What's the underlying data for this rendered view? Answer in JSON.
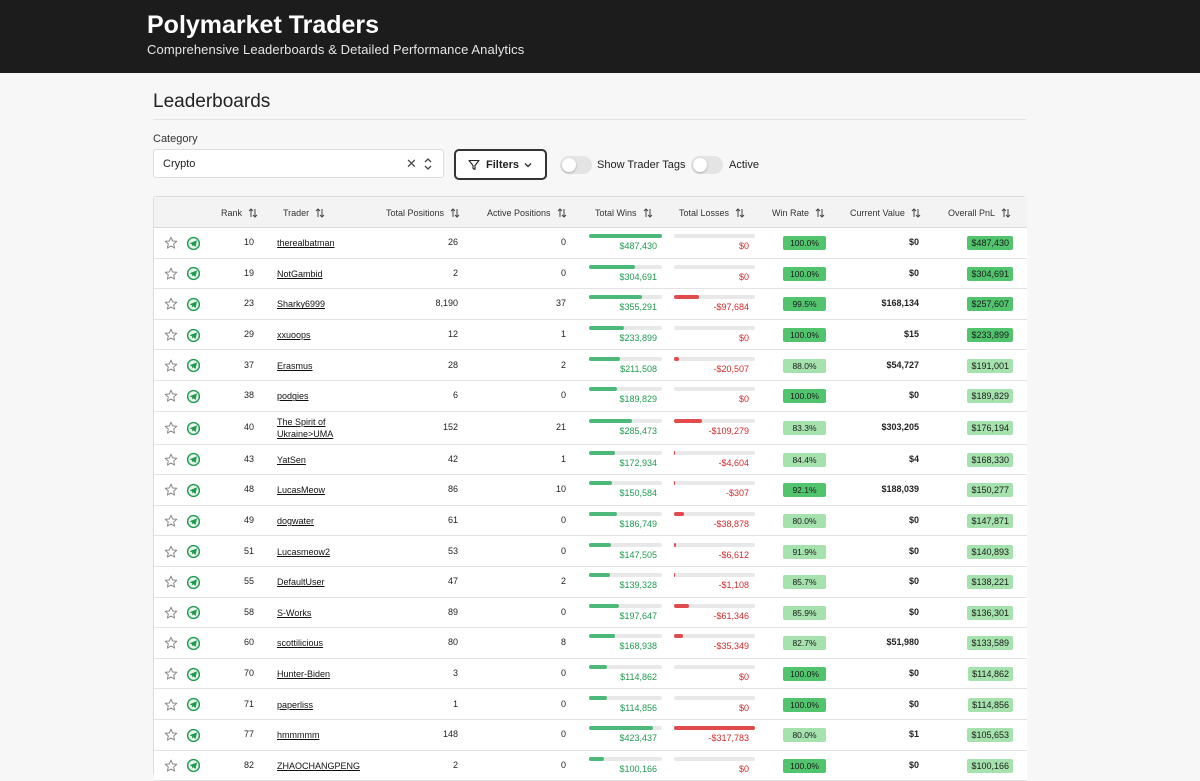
{
  "header": {
    "title": "Polymarket Traders",
    "subtitle": "Comprehensive Leaderboards & Detailed Performance Analytics"
  },
  "page": {
    "heading": "Leaderboards"
  },
  "category": {
    "label": "Category",
    "value": "Crypto",
    "clear_glyph": "✕"
  },
  "filters": {
    "label": "Filters"
  },
  "toggles": [
    {
      "label": "Show Trader Tags",
      "on": false
    },
    {
      "label": "Active",
      "on": false
    }
  ],
  "colors": {
    "win_green": "#1f9a50",
    "loss_red": "#d12b2b",
    "bar_green": "#4cb97a",
    "bar_red": "#e14b4b",
    "rate_high": "#52c46e",
    "rate_mid": "#a6e2ae",
    "pnl_high": "#52c46e",
    "pnl_mid": "#a6e2ae",
    "telegram": "#1f9a50",
    "header_bg": "#1c1c1c"
  },
  "table": {
    "columns": [
      "Rank",
      "Trader",
      "Total Positions",
      "Active Positions",
      "Total Wins",
      "Total Losses",
      "Win Rate",
      "Current Value",
      "Overall PnL"
    ],
    "rows": [
      {
        "rank": "10",
        "trader": "therealbatman",
        "total_positions": "26",
        "active_positions": "0",
        "total_wins": "$487,430",
        "total_losses": "$0",
        "win_rate": "100.0%",
        "current_value": "$0",
        "overall_pnl": "$487,430",
        "wins_frac": 1.0,
        "loss_frac": 0.0
      },
      {
        "rank": "19",
        "trader": "NotGambid",
        "total_positions": "2",
        "active_positions": "0",
        "total_wins": "$304,691",
        "total_losses": "$0",
        "win_rate": "100.0%",
        "current_value": "$0",
        "overall_pnl": "$304,691",
        "wins_frac": 0.63,
        "loss_frac": 0.0
      },
      {
        "rank": "23",
        "trader": "Sharky6999",
        "total_positions": "8,190",
        "active_positions": "37",
        "total_wins": "$355,291",
        "total_losses": "-$97,684",
        "win_rate": "99.5%",
        "current_value": "$168,134",
        "overall_pnl": "$257,607",
        "wins_frac": 0.73,
        "loss_frac": 0.31
      },
      {
        "rank": "29",
        "trader": "xxuoops",
        "total_positions": "12",
        "active_positions": "1",
        "total_wins": "$233,899",
        "total_losses": "$0",
        "win_rate": "100.0%",
        "current_value": "$15",
        "overall_pnl": "$233,899",
        "wins_frac": 0.48,
        "loss_frac": 0.0
      },
      {
        "rank": "37",
        "trader": "Erasmus",
        "total_positions": "28",
        "active_positions": "2",
        "total_wins": "$211,508",
        "total_losses": "-$20,507",
        "win_rate": "88.0%",
        "current_value": "$54,727",
        "overall_pnl": "$191,001",
        "wins_frac": 0.43,
        "loss_frac": 0.065
      },
      {
        "rank": "38",
        "trader": "podgies",
        "total_positions": "6",
        "active_positions": "0",
        "total_wins": "$189,829",
        "total_losses": "$0",
        "win_rate": "100.0%",
        "current_value": "$0",
        "overall_pnl": "$189,829",
        "wins_frac": 0.39,
        "loss_frac": 0.0
      },
      {
        "rank": "40",
        "trader": "The Spirit of Ukraine>UMA",
        "total_positions": "152",
        "active_positions": "21",
        "total_wins": "$285,473",
        "total_losses": "-$109,279",
        "win_rate": "83.3%",
        "current_value": "$303,205",
        "overall_pnl": "$176,194",
        "wins_frac": 0.59,
        "loss_frac": 0.34
      },
      {
        "rank": "43",
        "trader": "YatSen",
        "total_positions": "42",
        "active_positions": "1",
        "total_wins": "$172,934",
        "total_losses": "-$4,604",
        "win_rate": "84.4%",
        "current_value": "$4",
        "overall_pnl": "$168,330",
        "wins_frac": 0.35,
        "loss_frac": 0.015
      },
      {
        "rank": "48",
        "trader": "LucasMeow",
        "total_positions": "86",
        "active_positions": "10",
        "total_wins": "$150,584",
        "total_losses": "-$307",
        "win_rate": "92.1%",
        "current_value": "$188,039",
        "overall_pnl": "$150,277",
        "wins_frac": 0.31,
        "loss_frac": 0.005
      },
      {
        "rank": "49",
        "trader": "dogwater",
        "total_positions": "61",
        "active_positions": "0",
        "total_wins": "$186,749",
        "total_losses": "-$38,878",
        "win_rate": "80.0%",
        "current_value": "$0",
        "overall_pnl": "$147,871",
        "wins_frac": 0.38,
        "loss_frac": 0.12
      },
      {
        "rank": "51",
        "trader": "Lucasmeow2",
        "total_positions": "53",
        "active_positions": "0",
        "total_wins": "$147,505",
        "total_losses": "-$6,612",
        "win_rate": "91.9%",
        "current_value": "$0",
        "overall_pnl": "$140,893",
        "wins_frac": 0.3,
        "loss_frac": 0.02
      },
      {
        "rank": "55",
        "trader": "DefaultUser",
        "total_positions": "47",
        "active_positions": "2",
        "total_wins": "$139,328",
        "total_losses": "-$1,108",
        "win_rate": "85.7%",
        "current_value": "$0",
        "overall_pnl": "$138,221",
        "wins_frac": 0.29,
        "loss_frac": 0.005
      },
      {
        "rank": "58",
        "trader": "S-Works",
        "total_positions": "89",
        "active_positions": "0",
        "total_wins": "$197,647",
        "total_losses": "-$61,346",
        "win_rate": "85.9%",
        "current_value": "$0",
        "overall_pnl": "$136,301",
        "wins_frac": 0.41,
        "loss_frac": 0.19
      },
      {
        "rank": "60",
        "trader": "scottilicious",
        "total_positions": "80",
        "active_positions": "8",
        "total_wins": "$168,938",
        "total_losses": "-$35,349",
        "win_rate": "82.7%",
        "current_value": "$51,980",
        "overall_pnl": "$133,589",
        "wins_frac": 0.35,
        "loss_frac": 0.11
      },
      {
        "rank": "70",
        "trader": "Hunter-Biden",
        "total_positions": "3",
        "active_positions": "0",
        "total_wins": "$114,862",
        "total_losses": "$0",
        "win_rate": "100.0%",
        "current_value": "$0",
        "overall_pnl": "$114,862",
        "wins_frac": 0.24,
        "loss_frac": 0.0
      },
      {
        "rank": "71",
        "trader": "paperliss",
        "total_positions": "1",
        "active_positions": "0",
        "total_wins": "$114,856",
        "total_losses": "$0",
        "win_rate": "100.0%",
        "current_value": "$0",
        "overall_pnl": "$114,856",
        "wins_frac": 0.24,
        "loss_frac": 0.0
      },
      {
        "rank": "77",
        "trader": "hmmmmm",
        "total_positions": "148",
        "active_positions": "0",
        "total_wins": "$423,437",
        "total_losses": "-$317,783",
        "win_rate": "80.0%",
        "current_value": "$1",
        "overall_pnl": "$105,653",
        "wins_frac": 0.87,
        "loss_frac": 1.0
      },
      {
        "rank": "82",
        "trader": "ZHAOCHANGPENG",
        "total_positions": "2",
        "active_positions": "0",
        "total_wins": "$100,166",
        "total_losses": "$0",
        "win_rate": "100.0%",
        "current_value": "$0",
        "overall_pnl": "$100,166",
        "wins_frac": 0.21,
        "loss_frac": 0.0
      }
    ]
  }
}
